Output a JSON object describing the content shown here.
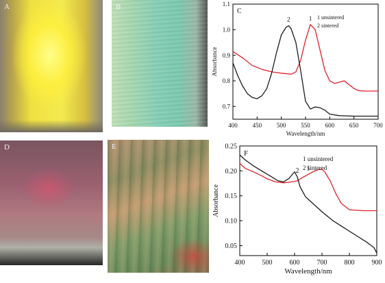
{
  "photos": [
    {
      "label": "A"
    },
    {
      "label": "B"
    },
    {
      "label": "D"
    },
    {
      "label": "E"
    }
  ],
  "chart_data": [
    {
      "type": "line",
      "panel_label": "C",
      "xlabel": "Wavelength/nm",
      "ylabel": "Absorbance",
      "xlim": [
        400,
        700
      ],
      "ylim": [
        0.65,
        1.1
      ],
      "xticks": [
        400,
        450,
        500,
        550,
        600,
        650,
        700
      ],
      "yticks": [
        0.7,
        0.8,
        0.9,
        1.0,
        1.1
      ],
      "legend": [
        "1 unsintered",
        "2 sintered"
      ],
      "series": [
        {
          "name": "1 unsintered",
          "curve_label": "1",
          "color": "#e0202a",
          "x": [
            400,
            420,
            440,
            460,
            480,
            500,
            520,
            530,
            540,
            550,
            560,
            570,
            580,
            590,
            600,
            610,
            620,
            630,
            640,
            650,
            660,
            670,
            680,
            690,
            700
          ],
          "y": [
            0.915,
            0.89,
            0.86,
            0.845,
            0.835,
            0.83,
            0.826,
            0.835,
            0.88,
            0.96,
            1.02,
            1.0,
            0.92,
            0.84,
            0.8,
            0.79,
            0.795,
            0.8,
            0.785,
            0.77,
            0.762,
            0.76,
            0.76,
            0.76,
            0.76
          ]
        },
        {
          "name": "2 sintered",
          "curve_label": "2",
          "color": "#1a1a1a",
          "x": [
            400,
            410,
            420,
            430,
            440,
            450,
            460,
            470,
            480,
            490,
            500,
            510,
            515,
            520,
            530,
            540,
            550,
            560,
            570,
            580,
            590,
            600,
            620,
            650,
            700
          ],
          "y": [
            0.87,
            0.82,
            0.78,
            0.75,
            0.735,
            0.73,
            0.742,
            0.77,
            0.83,
            0.91,
            0.98,
            1.01,
            1.015,
            1.005,
            0.95,
            0.84,
            0.72,
            0.69,
            0.698,
            0.695,
            0.685,
            0.67,
            0.664,
            0.662,
            0.662
          ]
        }
      ]
    },
    {
      "type": "line",
      "panel_label": "F",
      "xlabel": "Wavelength/nm",
      "ylabel": "Absorbance",
      "xlim": [
        400,
        900
      ],
      "ylim": [
        0.03,
        0.25
      ],
      "xticks": [
        400,
        500,
        600,
        700,
        800,
        900
      ],
      "yticks": [
        0.05,
        0.1,
        0.15,
        0.2,
        0.25
      ],
      "legend": [
        "1 unsintered",
        "2 sintered"
      ],
      "series": [
        {
          "name": "1 unsintered",
          "curve_label": "1",
          "color": "#e0202a",
          "x": [
            400,
            420,
            450,
            480,
            500,
            530,
            560,
            590,
            610,
            630,
            650,
            670,
            690,
            700,
            710,
            730,
            750,
            770,
            800,
            850,
            900
          ],
          "y": [
            0.215,
            0.205,
            0.198,
            0.19,
            0.184,
            0.178,
            0.176,
            0.178,
            0.18,
            0.187,
            0.193,
            0.199,
            0.203,
            0.203,
            0.198,
            0.18,
            0.155,
            0.135,
            0.122,
            0.12,
            0.12
          ]
        },
        {
          "name": "2 sintered",
          "curve_label": "2",
          "color": "#1a1a1a",
          "x": [
            400,
            420,
            450,
            480,
            510,
            540,
            560,
            580,
            595,
            600,
            610,
            620,
            640,
            660,
            700,
            740,
            780,
            820,
            860,
            890,
            900
          ],
          "y": [
            0.232,
            0.222,
            0.21,
            0.2,
            0.19,
            0.18,
            0.178,
            0.185,
            0.195,
            0.198,
            0.188,
            0.168,
            0.148,
            0.138,
            0.118,
            0.1,
            0.086,
            0.072,
            0.058,
            0.046,
            0.035
          ]
        }
      ]
    }
  ]
}
